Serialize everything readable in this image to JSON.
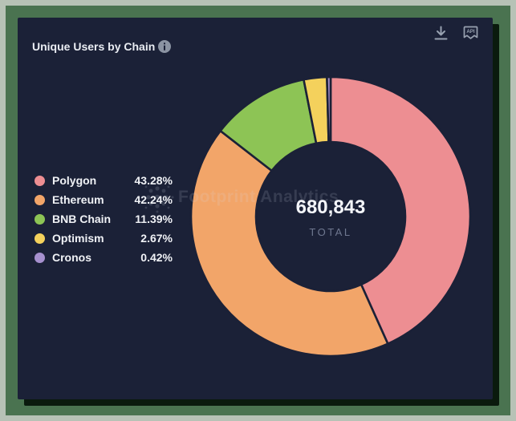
{
  "frame": {
    "outer_border_color": "#b7c2b6",
    "frame_color": "#4a7350",
    "card_background": "#1b2137"
  },
  "header": {
    "title": "Unique Users by Chain",
    "info_icon": "info-icon",
    "download_icon": "download-icon",
    "api_icon": "api-badge-icon",
    "api_label": "API"
  },
  "watermark": {
    "logo": "footprint-sunburst-logo",
    "text": "Footprint Analytics"
  },
  "chart_data": {
    "type": "pie",
    "subtype": "donut",
    "title": "Unique Users by Chain",
    "total_value": "680,843",
    "total_label": "TOTAL",
    "start_angle_deg": 0,
    "direction": "clockwise",
    "legend_position": "left",
    "geometry": {
      "cx": 412,
      "cy": 270,
      "outer_radius": 174,
      "inner_radius": 93,
      "gap_color": "#1b2137",
      "gap_width": 2.6
    },
    "series": [
      {
        "name": "Polygon",
        "percent": 43.28,
        "color": "#ed8e92"
      },
      {
        "name": "Ethereum",
        "percent": 42.24,
        "color": "#f2a569"
      },
      {
        "name": "BNB Chain",
        "percent": 11.39,
        "color": "#8dc455"
      },
      {
        "name": "Optimism",
        "percent": 2.67,
        "color": "#f4d15c"
      },
      {
        "name": "Cronos",
        "percent": 0.42,
        "color": "#a690ce"
      }
    ]
  }
}
